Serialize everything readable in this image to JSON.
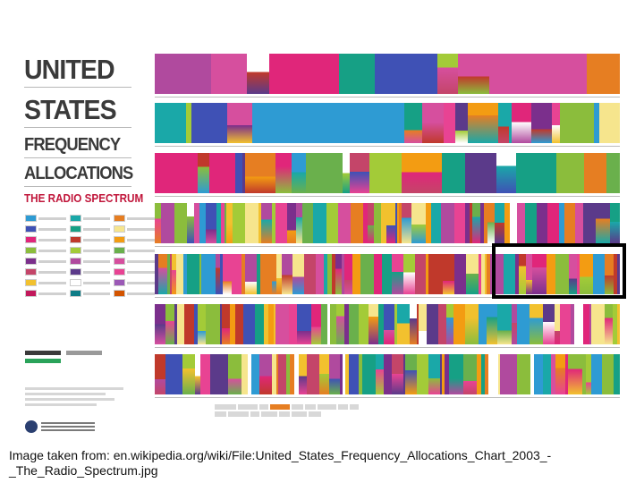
{
  "poster": {
    "title_line1": "UNITED",
    "title_line2": "STATES",
    "title_line3": "FREQUENCY",
    "title_line4": "ALLOCATIONS",
    "subtitle": "THE RADIO SPECTRUM"
  },
  "caption": {
    "line1": "Image taken from: en.wikipedia.org/wiki/File:United_States_Frequency_Allocations_Chart_2003_-",
    "line2": "_The_Radio_Spectrum.jpg"
  },
  "colors": {
    "highlight_border": "#000000",
    "subtitle": "#c0153a",
    "title": "#3a3a3a"
  }
}
